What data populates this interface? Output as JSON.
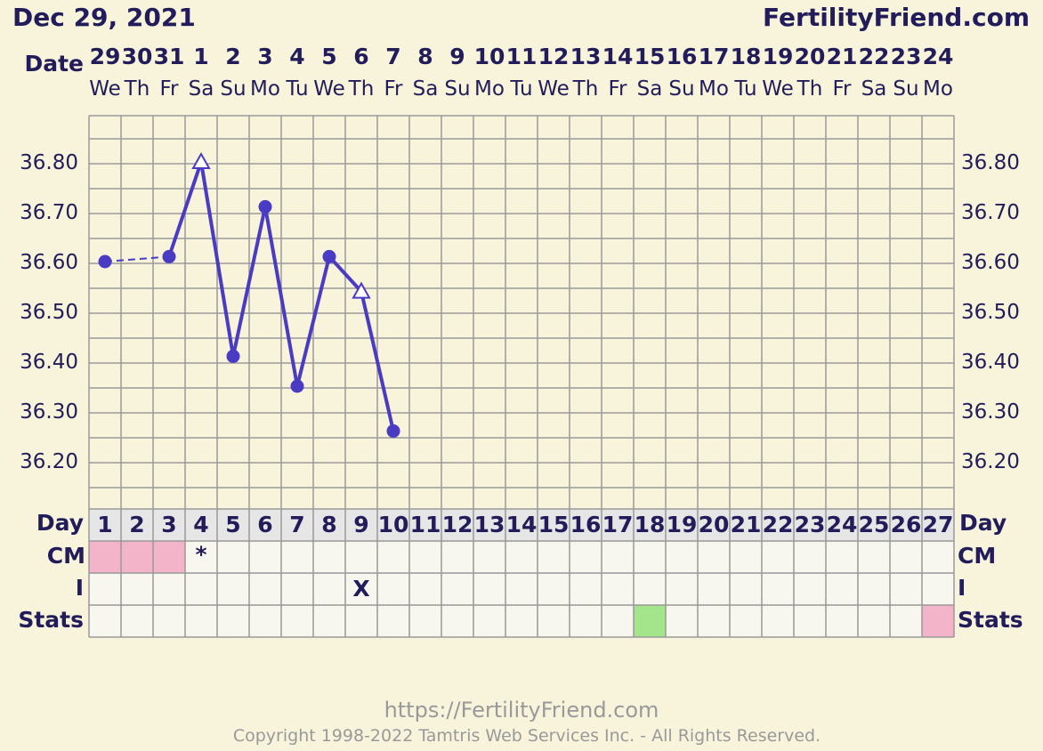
{
  "header": {
    "chart_date": "Dec 29, 2021",
    "brand": "FertilityFriend.com"
  },
  "footer": {
    "url": "https://FertilityFriend.com",
    "copyright": "Copyright 1998-2022 Tamtris Web Services Inc. - All Rights Reserved."
  },
  "colors": {
    "background": "#f8f4dc",
    "text": "#221c5a",
    "temp_line": "#4a3bc4",
    "grid": "#999999",
    "pink": "#f3b3c8",
    "green": "#a4e48a",
    "cell": "#f7f7f0",
    "dayrow": "#e6e6e6"
  },
  "labels": {
    "date": "Date",
    "day": "Day",
    "cm": "CM",
    "intercourse": "I",
    "stats": "Stats"
  },
  "chart_data": {
    "type": "line",
    "dates": [
      "29",
      "30",
      "31",
      "1",
      "2",
      "3",
      "4",
      "5",
      "6",
      "7",
      "8",
      "9",
      "10",
      "11",
      "12",
      "13",
      "14",
      "15",
      "16",
      "17",
      "18",
      "19",
      "20",
      "21",
      "22",
      "23",
      "24"
    ],
    "weekdays": [
      "We",
      "Th",
      "Fr",
      "Sa",
      "Su",
      "Mo",
      "Tu",
      "We",
      "Th",
      "Fr",
      "Sa",
      "Su",
      "Mo",
      "Tu",
      "We",
      "Th",
      "Fr",
      "Sa",
      "Su",
      "Mo",
      "Tu",
      "We",
      "Th",
      "Fr",
      "Sa",
      "Su",
      "Mo"
    ],
    "cycle_days": [
      "1",
      "2",
      "3",
      "4",
      "5",
      "6",
      "7",
      "8",
      "9",
      "10",
      "11",
      "12",
      "13",
      "14",
      "15",
      "16",
      "17",
      "18",
      "19",
      "20",
      "21",
      "22",
      "23",
      "24",
      "25",
      "26",
      "27"
    ],
    "ylim": [
      36.1,
      36.9
    ],
    "y_ticks": [
      "36.20",
      "36.30",
      "36.40",
      "36.50",
      "36.60",
      "36.70",
      "36.80"
    ],
    "temperatures": [
      36.6,
      null,
      36.61,
      36.8,
      36.41,
      36.71,
      36.35,
      36.61,
      36.54,
      36.26,
      null,
      null,
      null,
      null,
      null,
      null,
      null,
      null,
      null,
      null,
      null,
      null,
      null,
      null,
      null,
      null,
      null
    ],
    "markers": [
      "circle",
      null,
      "circle",
      "triangle",
      "circle",
      "circle",
      "circle",
      "circle",
      "triangle",
      "circle",
      null,
      null,
      null,
      null,
      null,
      null,
      null,
      null,
      null,
      null,
      null,
      null,
      null,
      null,
      null,
      null,
      null
    ],
    "dashed_gap_between_days": [
      1,
      3
    ],
    "cm_pink_days": [
      1,
      2,
      3
    ],
    "cm_marks": [
      {
        "day": 4,
        "text": "*"
      }
    ],
    "intercourse_marks": [
      {
        "day": 9,
        "text": "X"
      }
    ],
    "stats_green_days": [
      18
    ],
    "stats_pink_days": [
      27
    ]
  }
}
